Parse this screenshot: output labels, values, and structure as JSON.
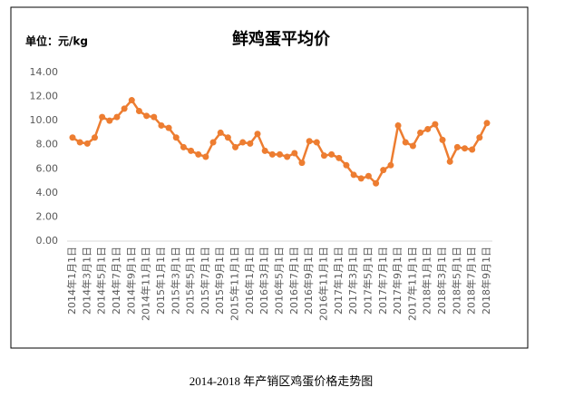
{
  "chart_data": {
    "type": "line",
    "title": "鲜鸡蛋平均价",
    "unit_label": "单位：元/kg",
    "caption": "2014-2018 年产销区鸡蛋价格走势图",
    "categories": [
      "2014年1月1日",
      null,
      "2014年3月1日",
      null,
      "2014年5月1日",
      null,
      "2014年7月1日",
      null,
      "2014年9月1日",
      null,
      "2014年11月1日",
      null,
      "2015年1月1日",
      null,
      "2015年3月1日",
      null,
      "2015年5月1日",
      null,
      "2015年7月1日",
      null,
      "2015年9月1日",
      null,
      "2015年11月1日",
      null,
      "2016年1月1日",
      null,
      "2016年3月1日",
      null,
      "2016年5月1日",
      null,
      "2016年7月1日",
      null,
      "2016年9月1日",
      null,
      "2016年11月1日",
      null,
      "2017年1月1日",
      null,
      "2017年3月1日",
      null,
      "2017年5月1日",
      null,
      "2017年7月1日",
      null,
      "2017年9月1日",
      null,
      "2017年11月1日",
      null,
      "2018年1月1日",
      null,
      "2018年3月1日",
      null,
      "2018年5月1日",
      null,
      "2018年7月1日",
      null,
      "2018年9月1日"
    ],
    "values": [
      8.6,
      8.2,
      8.1,
      8.6,
      10.3,
      10.0,
      10.3,
      11.0,
      11.7,
      10.8,
      10.4,
      10.3,
      9.6,
      9.4,
      8.6,
      7.8,
      7.5,
      7.2,
      7.0,
      8.2,
      9.0,
      8.6,
      7.8,
      8.2,
      8.1,
      8.9,
      7.5,
      7.2,
      7.2,
      7.0,
      7.3,
      6.5,
      8.3,
      8.2,
      7.1,
      7.2,
      6.9,
      6.3,
      5.5,
      5.2,
      5.4,
      4.8,
      5.9,
      6.3,
      9.6,
      8.2,
      7.9,
      9.0,
      9.3,
      9.7,
      8.4,
      6.6,
      7.8,
      7.7,
      7.6,
      8.6,
      9.8
    ],
    "color": "#ed7d31",
    "ylim": [
      0,
      14
    ],
    "yticks": [
      {
        "value": 0,
        "label": "0.00"
      },
      {
        "value": 2,
        "label": "2.00"
      },
      {
        "value": 4,
        "label": "4.00"
      },
      {
        "value": 6,
        "label": "6.00"
      },
      {
        "value": 8,
        "label": "8.00"
      },
      {
        "value": 10,
        "label": "10.00"
      },
      {
        "value": 12,
        "label": "12.00"
      },
      {
        "value": 14,
        "label": "14.00"
      }
    ],
    "grid": false
  }
}
